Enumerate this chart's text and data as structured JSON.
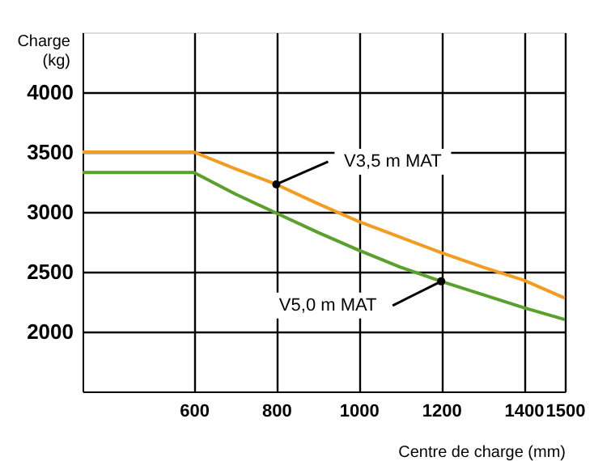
{
  "chart_data": {
    "type": "line",
    "xlabel": "Centre de charge (mm)",
    "ylabel": "Charge (kg)",
    "x": [
      330,
      600,
      700,
      800,
      900,
      1000,
      1100,
      1200,
      1300,
      1400,
      1500
    ],
    "series": [
      {
        "color": "#f39c1f",
        "values": [
          3500,
          3500,
          3360,
          3230,
          3070,
          2920,
          2790,
          2660,
          2540,
          2430,
          2280
        ]
      },
      {
        "color": "#5aa02c",
        "values": [
          3330,
          3330,
          3150,
          2990,
          2830,
          2680,
          2540,
          2420,
          2310,
          2200,
          2100
        ]
      }
    ],
    "xlim": [
      330,
      1500
    ],
    "ylim": [
      1500,
      4500
    ],
    "xticks": [
      600,
      800,
      1000,
      1200,
      1400,
      1500
    ],
    "yticks": [
      2000,
      2500,
      3000,
      3500,
      4000
    ],
    "grid": true,
    "marker": "none",
    "line_style": "solid",
    "annotations": [
      {
        "text": "V3,5 m MAT",
        "x": 800,
        "y": 3230
      },
      {
        "text": "V5,0 m MAT",
        "x": 1200,
        "y": 2420
      }
    ]
  }
}
